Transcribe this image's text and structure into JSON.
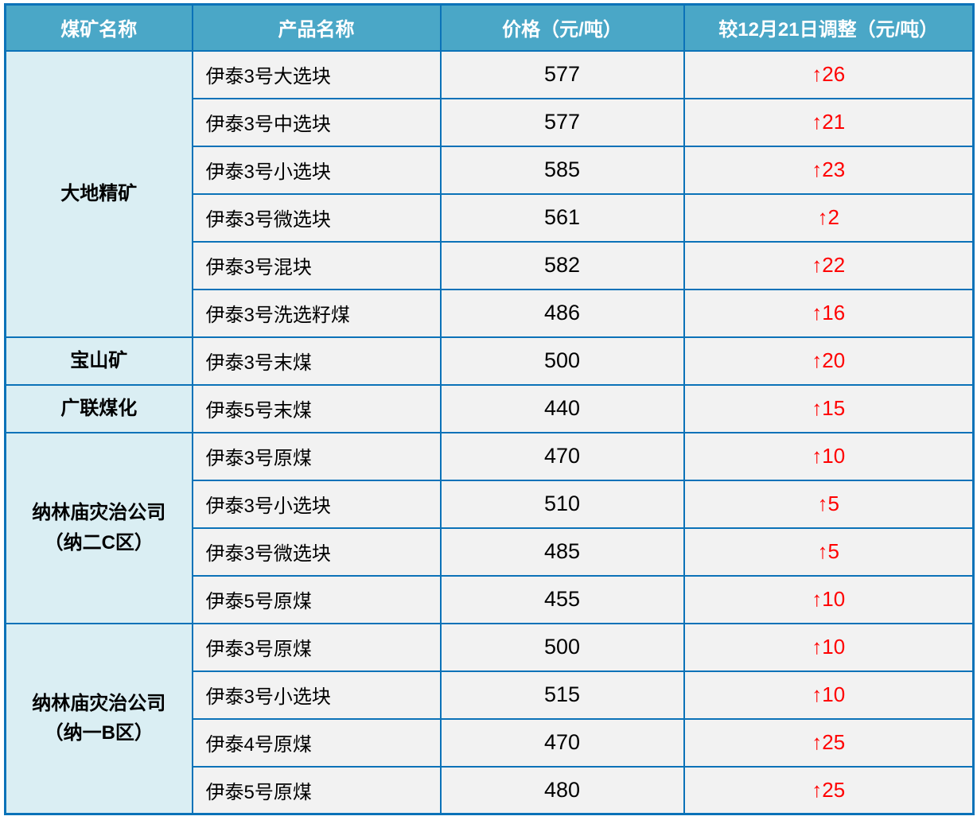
{
  "colors": {
    "header_bg": "#4AA7C7",
    "header_text": "#FFFFFF",
    "border": "#0B72B8",
    "mine_bg": "#DAEEF3",
    "cell_bg": "#F2F2F2",
    "price_text": "#000000",
    "adjustment_text": "#FF0000"
  },
  "table": {
    "headers": [
      "煤矿名称",
      "产品名称",
      "价格（元/吨）",
      "较12月21日调整（元/吨）"
    ],
    "groups": [
      {
        "mine_lines": [
          "大地精矿"
        ],
        "rows": [
          {
            "product": "伊泰3号大选块",
            "price": "577",
            "adjustment": "↑26"
          },
          {
            "product": "伊泰3号中选块",
            "price": "577",
            "adjustment": "↑21"
          },
          {
            "product": "伊泰3号小选块",
            "price": "585",
            "adjustment": "↑23"
          },
          {
            "product": "伊泰3号微选块",
            "price": "561",
            "adjustment": "↑2"
          },
          {
            "product": "伊泰3号混块",
            "price": "582",
            "adjustment": "↑22"
          },
          {
            "product": "伊泰3号洗选籽煤",
            "price": "486",
            "adjustment": "↑16"
          }
        ]
      },
      {
        "mine_lines": [
          "宝山矿"
        ],
        "rows": [
          {
            "product": "伊泰3号末煤",
            "price": "500",
            "adjustment": "↑20"
          }
        ]
      },
      {
        "mine_lines": [
          "广联煤化"
        ],
        "rows": [
          {
            "product": "伊泰5号末煤",
            "price": "440",
            "adjustment": "↑15"
          }
        ]
      },
      {
        "mine_lines": [
          "纳林庙灾治公司",
          "（纳二C区）"
        ],
        "rows": [
          {
            "product": "伊泰3号原煤",
            "price": "470",
            "adjustment": "↑10"
          },
          {
            "product": "伊泰3号小选块",
            "price": "510",
            "adjustment": "↑5"
          },
          {
            "product": "伊泰3号微选块",
            "price": "485",
            "adjustment": "↑5"
          },
          {
            "product": "伊泰5号原煤",
            "price": "455",
            "adjustment": "↑10"
          }
        ]
      },
      {
        "mine_lines": [
          "纳林庙灾治公司",
          "（纳一B区）"
        ],
        "rows": [
          {
            "product": "伊泰3号原煤",
            "price": "500",
            "adjustment": "↑10"
          },
          {
            "product": "伊泰3号小选块",
            "price": "515",
            "adjustment": "↑10"
          },
          {
            "product": "伊泰4号原煤",
            "price": "470",
            "adjustment": "↑25"
          },
          {
            "product": "伊泰5号原煤",
            "price": "480",
            "adjustment": "↑25"
          }
        ]
      }
    ]
  },
  "chart_data": {
    "type": "table",
    "columns": [
      "煤矿名称",
      "产品名称",
      "价格（元/吨）",
      "较12月21日调整（元/吨）"
    ],
    "rows": [
      [
        "大地精矿",
        "伊泰3号大选块",
        577,
        "↑26"
      ],
      [
        "大地精矿",
        "伊泰3号中选块",
        577,
        "↑21"
      ],
      [
        "大地精矿",
        "伊泰3号小选块",
        585,
        "↑23"
      ],
      [
        "大地精矿",
        "伊泰3号微选块",
        561,
        "↑2"
      ],
      [
        "大地精矿",
        "伊泰3号混块",
        582,
        "↑22"
      ],
      [
        "大地精矿",
        "伊泰3号洗选籽煤",
        486,
        "↑16"
      ],
      [
        "宝山矿",
        "伊泰3号末煤",
        500,
        "↑20"
      ],
      [
        "广联煤化",
        "伊泰5号末煤",
        440,
        "↑15"
      ],
      [
        "纳林庙灾治公司（纳二C区）",
        "伊泰3号原煤",
        470,
        "↑10"
      ],
      [
        "纳林庙灾治公司（纳二C区）",
        "伊泰3号小选块",
        510,
        "↑5"
      ],
      [
        "纳林庙灾治公司（纳二C区）",
        "伊泰3号微选块",
        485,
        "↑5"
      ],
      [
        "纳林庙灾治公司（纳二C区）",
        "伊泰5号原煤",
        455,
        "↑10"
      ],
      [
        "纳林庙灾治公司（纳一B区）",
        "伊泰3号原煤",
        500,
        "↑10"
      ],
      [
        "纳林庙灾治公司（纳一B区）",
        "伊泰3号小选块",
        515,
        "↑10"
      ],
      [
        "纳林庙灾治公司（纳一B区）",
        "伊泰4号原煤",
        470,
        "↑25"
      ],
      [
        "纳林庙灾治公司（纳一B区）",
        "伊泰5号原煤",
        480,
        "↑25"
      ]
    ]
  }
}
